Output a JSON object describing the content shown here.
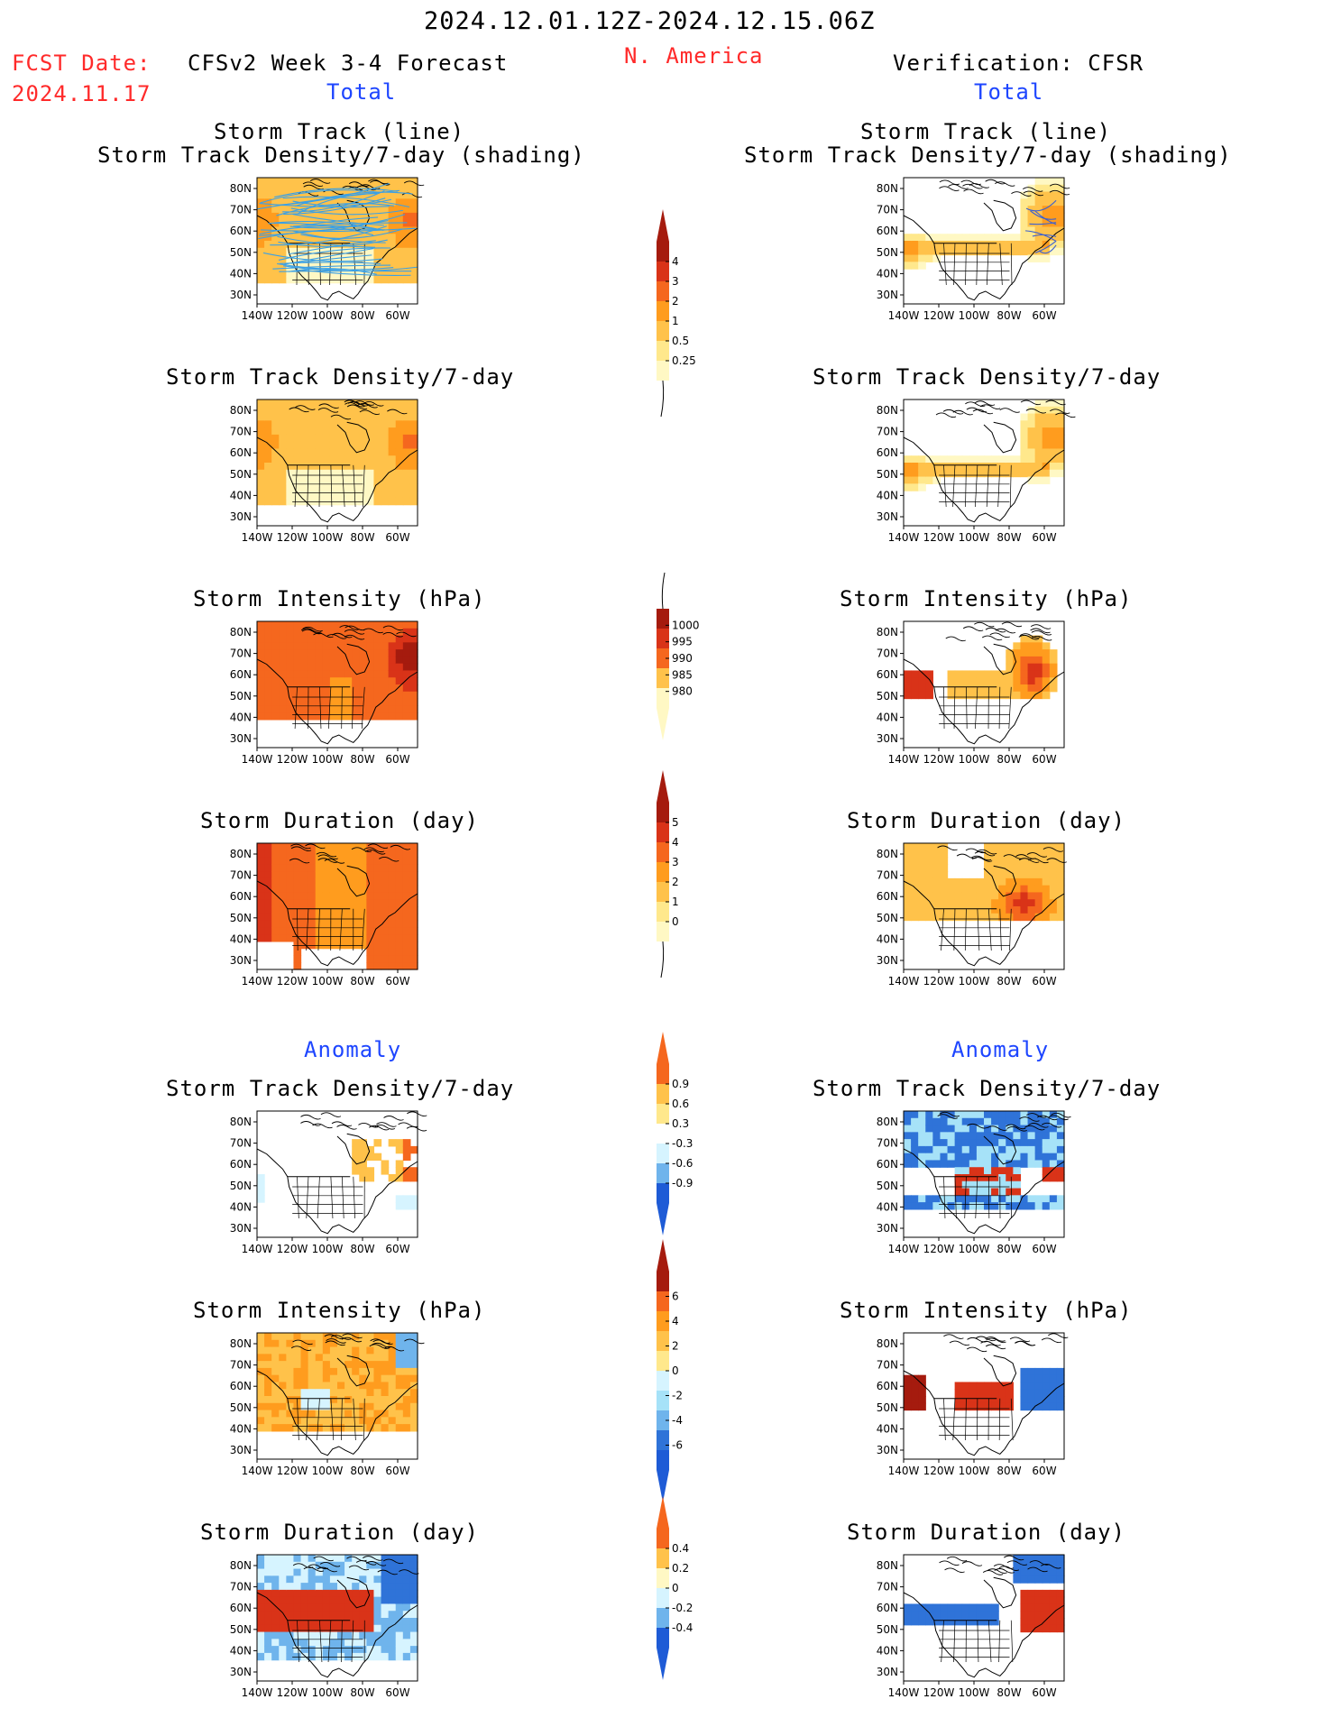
{
  "header": {
    "date_range": "2024.12.01.12Z-2024.12.15.06Z",
    "region": "N. America",
    "fcst_label": "FCST Date:",
    "fcst_date": "2024.11.17",
    "model_title": "CFSv2 Week 3-4 Forecast",
    "verification_title": "Verification: CFSR",
    "total_left": "Total",
    "total_right": "Total",
    "anomaly_left": "Anomaly",
    "anomaly_right": "Anomaly"
  },
  "colors": {
    "title_red": "#ff2a2a",
    "title_blue": "#1e46ff",
    "track_line": "#3aa0e6",
    "track_line_verif": "#3a5fd0",
    "shade_levels": [
      "#fff8c4",
      "#ffe88c",
      "#ffc24a",
      "#ff9c1e",
      "#f5671e",
      "#d93318",
      "#a51b0e"
    ],
    "neg_levels": [
      "#d6f4ff",
      "#a6e2f8",
      "#6fb4ec",
      "#2f73d8",
      "#1e5bd6"
    ],
    "map_outline": "#000000"
  },
  "panel_titles": {
    "track": [
      "Storm Track (line)",
      "Storm Track Density/7-day (shading)"
    ],
    "density": "Storm Track Density/7-day",
    "intensity": "Storm Intensity (hPa)",
    "duration": "Storm Duration (day)"
  },
  "axes": {
    "lat_labels": [
      "80N",
      "70N",
      "60N",
      "50N",
      "40N",
      "30N"
    ],
    "lon_labels": [
      "140W",
      "120W",
      "100W",
      "80W",
      "60W"
    ]
  },
  "colorbars": [
    {
      "id": "cb-density",
      "labels": [
        "4",
        "3",
        "2",
        "1",
        "0.5",
        "0.25"
      ],
      "open_bottom": true
    },
    {
      "id": "cb-intensity",
      "labels": [
        "1000",
        "995",
        "990",
        "985",
        "980"
      ],
      "open_top": true
    },
    {
      "id": "cb-duration",
      "labels": [
        "5",
        "4",
        "3",
        "2",
        "1",
        "0"
      ],
      "open_bottom": true
    },
    {
      "id": "cb-anom-density",
      "labels": [
        "0.9",
        "0.6",
        "0.3",
        "-0.3",
        "-0.6",
        "-0.9"
      ]
    },
    {
      "id": "cb-anom-intensity",
      "labels": [
        "6",
        "4",
        "2",
        "0",
        "-2",
        "-4",
        "-6"
      ]
    },
    {
      "id": "cb-anom-duration",
      "labels": [
        "0.4",
        "0.2",
        "0",
        "-0.2",
        "-0.4"
      ]
    }
  ]
}
